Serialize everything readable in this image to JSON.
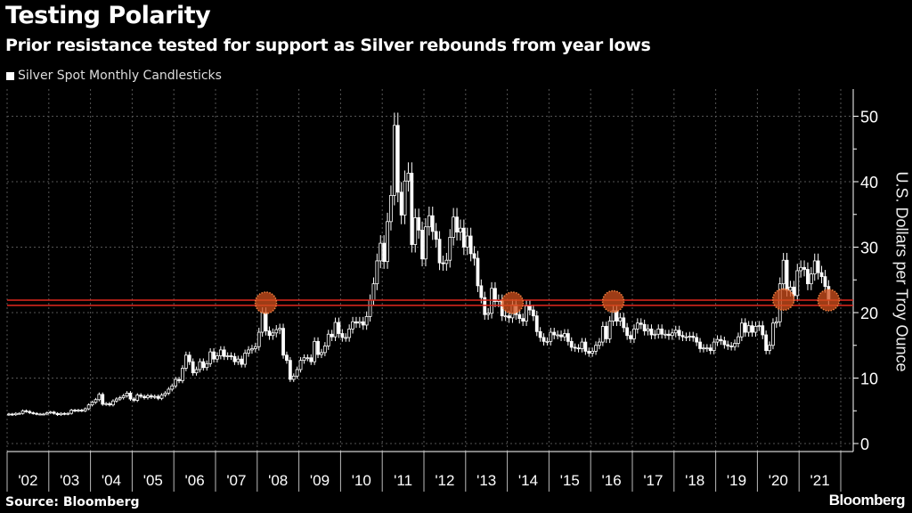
{
  "title": "Testing Polarity",
  "subtitle": "Prior resistance tested for support as Silver rebounds from year lows",
  "legend": "Silver Spot Monthly Candlesticks",
  "source": "Source: Bloomberg",
  "brand": "Bloomberg",
  "colors": {
    "background": "#000000",
    "candle": "#ffffff",
    "line": "#e0281e",
    "marker": "#d2501e",
    "grid": "#555555"
  },
  "chart_data": {
    "type": "candlestick",
    "title": "Testing Polarity",
    "ylabel": "U.S. Dollars per Troy Ounce",
    "ylim": [
      0,
      50
    ],
    "yticks": [
      0,
      10,
      20,
      30,
      40,
      50
    ],
    "y_axis_side": "right",
    "grid": true,
    "legend_placement": "top-left",
    "xticks": [
      "'02",
      "'03",
      "'04",
      "'05",
      "'06",
      "'07",
      "'08",
      "'09",
      "'10",
      "'11",
      "'12",
      "'13",
      "'14",
      "'15",
      "'16",
      "'17",
      "'18",
      "'19",
      "'20",
      "'21"
    ],
    "x_start": "2002-01",
    "frequency": "monthly",
    "series": [
      {
        "name": "Silver Spot Monthly Candlesticks",
        "close": [
          4.5,
          4.4,
          4.6,
          4.6,
          5.0,
          4.9,
          4.7,
          4.6,
          4.5,
          4.5,
          4.5,
          4.7,
          4.8,
          4.6,
          4.4,
          4.6,
          4.5,
          4.6,
          5.1,
          5.0,
          5.1,
          5.0,
          5.3,
          5.9,
          6.3,
          6.7,
          7.5,
          6.0,
          6.1,
          5.9,
          6.5,
          6.8,
          7.0,
          7.3,
          7.7,
          6.8,
          6.6,
          7.4,
          7.2,
          7.0,
          7.3,
          7.1,
          7.2,
          6.9,
          7.4,
          7.7,
          8.3,
          8.8,
          9.8,
          9.6,
          11.5,
          13.5,
          12.5,
          10.8,
          11.3,
          12.5,
          11.6,
          12.2,
          14.0,
          12.9,
          13.4,
          14.3,
          13.3,
          13.4,
          13.3,
          12.5,
          12.9,
          12.1,
          13.8,
          14.3,
          14.5,
          14.8,
          17.0,
          20.0,
          17.2,
          16.5,
          16.9,
          17.4,
          17.6,
          13.5,
          12.7,
          9.8,
          10.3,
          11.3,
          12.7,
          13.1,
          13.1,
          12.5,
          15.6,
          13.6,
          13.9,
          14.9,
          16.7,
          16.3,
          18.5,
          16.8,
          16.2,
          16.2,
          17.5,
          18.6,
          18.4,
          18.6,
          18.1,
          19.4,
          21.9,
          24.4,
          27.9,
          30.6,
          27.8,
          33.9,
          37.9,
          48.6,
          38.4,
          34.9,
          40.1,
          41.3,
          30.4,
          34.5,
          32.6,
          28.2,
          33.1,
          34.8,
          32.4,
          31.2,
          27.6,
          27.5,
          28.0,
          31.5,
          34.6,
          32.3,
          32.9,
          30.0,
          31.7,
          29.0,
          28.3,
          24.1,
          22.3,
          19.7,
          19.9,
          23.7,
          21.7,
          21.9,
          19.5,
          19.5,
          19.2,
          21.2,
          19.7,
          19.1,
          18.7,
          21.0,
          20.4,
          19.5,
          17.1,
          16.2,
          15.6,
          15.6,
          17.0,
          16.6,
          16.6,
          16.3,
          16.8,
          15.6,
          14.7,
          14.6,
          14.5,
          15.5,
          14.1,
          13.8,
          14.1,
          15.0,
          15.5,
          17.9,
          16.0,
          18.7,
          20.3,
          18.7,
          19.2,
          17.7,
          16.5,
          16.0,
          17.5,
          18.4,
          18.2,
          17.2,
          17.5,
          16.6,
          16.7,
          17.5,
          16.7,
          16.7,
          16.5,
          16.9,
          17.3,
          16.5,
          16.3,
          16.3,
          16.4,
          16.2,
          15.5,
          14.5,
          14.6,
          14.6,
          14.2,
          15.5,
          15.9,
          15.7,
          15.1,
          14.9,
          14.8,
          15.3,
          16.3,
          18.4,
          17.0,
          18.0,
          17.0,
          17.9,
          18.0,
          16.6,
          14.2,
          15.0,
          18.4,
          18.6,
          24.4,
          28.0,
          23.4,
          23.9,
          22.6,
          26.4,
          26.9,
          26.6,
          24.4,
          25.9,
          27.9,
          26.1,
          25.5,
          24.0,
          22.0
        ]
      }
    ],
    "horizontal_lines": [
      21.1,
      21.9
    ],
    "markers": [
      {
        "date": "2008-03",
        "value": 21.5
      },
      {
        "date": "2014-02",
        "value": 21.5
      },
      {
        "date": "2016-07",
        "value": 21.7
      },
      {
        "date": "2020-08",
        "value": 22.0
      },
      {
        "date": "2021-09",
        "value": 21.9
      }
    ]
  }
}
